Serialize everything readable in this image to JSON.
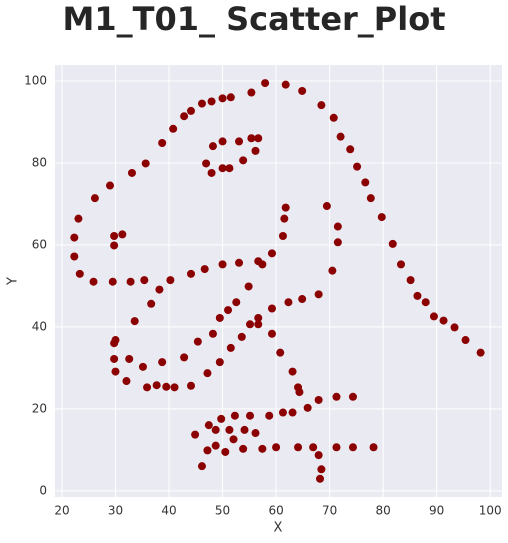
{
  "chart_data": {
    "type": "scatter",
    "title": "M1_T01_ Scatter_Plot",
    "xlabel": "X",
    "ylabel": "Y",
    "color": "#8b0000",
    "grid": true,
    "xlim": [
      18.7,
      102.2
    ],
    "ylim": [
      -1.5,
      103.9
    ],
    "xticks": [
      20,
      30,
      40,
      50,
      60,
      70,
      80,
      90,
      100
    ],
    "yticks": [
      0,
      20,
      40,
      60,
      80,
      100
    ],
    "x": [
      55.3846,
      51.5385,
      46.1538,
      42.8205,
      40.7692,
      38.7179,
      35.641,
      33.0769,
      28.9744,
      26.1538,
      23.0769,
      22.3077,
      22.3077,
      23.3333,
      25.8974,
      29.4872,
      32.8205,
      35.3846,
      40.2564,
      44.1026,
      46.6667,
      50.0,
      53.0769,
      56.6667,
      59.2308,
      61.2821,
      61.5385,
      61.7949,
      57.4359,
      54.8718,
      52.5641,
      48.2051,
      49.4872,
      51.0256,
      45.3846,
      42.8205,
      38.7179,
      35.1282,
      32.5641,
      30.0,
      33.5897,
      36.6667,
      38.2051,
      29.7436,
      29.7436,
      30.0,
      32.0513,
      35.8974,
      41.0256,
      44.1026,
      47.1795,
      49.4872,
      51.5385,
      53.5897,
      55.1282,
      56.6667,
      59.2308,
      62.3077,
      64.8718,
      67.9487,
      70.5128,
      71.5385,
      71.5385,
      69.4872,
      46.9231,
      48.2051,
      50.0,
      53.0769,
      55.3846,
      56.6667,
      56.1538,
      53.8462,
      51.2821,
      50.0,
      47.9487,
      29.7436,
      29.7436,
      31.2821,
      57.9487,
      61.7949,
      64.8718,
      68.4615,
      70.7692,
      72.0513,
      73.8462,
      75.1282,
      76.6667,
      77.6923,
      79.7436,
      81.7949,
      83.3333,
      85.1282,
      86.4103,
      87.9487,
      89.4872,
      93.3333,
      95.3846,
      98.2051,
      56.6667,
      59.2308,
      60.7692,
      63.0769,
      64.1026,
      64.359,
      74.359,
      71.2821,
      67.9487,
      65.8974,
      63.0769,
      61.2821,
      58.7179,
      55.1282,
      52.3077,
      49.7436,
      47.4359,
      44.8718,
      48.7179,
      51.2821,
      54.1026,
      56.1538,
      52.0513,
      48.7179,
      47.1795,
      46.1538,
      50.5128,
      53.8462,
      57.4359,
      60.0,
      64.1026,
      66.9231,
      71.2821,
      74.359,
      78.2051,
      67.9487,
      68.4615,
      68.2051,
      37.6923,
      39.4872,
      91.2821,
      50.0,
      47.9487,
      44.1026
    ],
    "y": [
      97.1795,
      96.0256,
      94.4872,
      91.4103,
      88.3333,
      84.8718,
      79.8718,
      77.5641,
      74.4872,
      71.4103,
      66.4103,
      61.7949,
      57.1795,
      52.9487,
      51.0256,
      51.0256,
      51.0256,
      51.4103,
      51.4103,
      52.9487,
      54.1026,
      55.2564,
      55.641,
      56.0256,
      57.9487,
      62.1795,
      66.4103,
      69.1026,
      55.2564,
      49.8718,
      46.0256,
      38.3333,
      42.1795,
      44.1026,
      36.4103,
      32.5641,
      31.4103,
      30.2564,
      32.1795,
      36.7949,
      41.4103,
      45.641,
      49.1026,
      36.0256,
      32.1795,
      29.1026,
      26.7949,
      25.2564,
      25.2564,
      25.641,
      28.718,
      31.4103,
      34.8718,
      37.5641,
      40.641,
      42.1795,
      44.4872,
      46.0256,
      46.7949,
      47.9487,
      53.7179,
      60.641,
      64.4872,
      69.4872,
      79.8718,
      84.1026,
      85.2564,
      85.2564,
      86.0256,
      86.0256,
      82.9487,
      80.641,
      78.718,
      78.718,
      77.5641,
      59.8718,
      62.1795,
      62.5641,
      99.4872,
      99.1026,
      97.5641,
      94.1026,
      91.0256,
      86.4103,
      83.3333,
      79.1026,
      75.2564,
      71.4103,
      66.7949,
      60.2564,
      55.2564,
      51.4103,
      47.5641,
      46.0256,
      42.5641,
      39.8718,
      36.7949,
      33.718,
      40.641,
      38.3333,
      33.718,
      29.1026,
      25.2564,
      24.1026,
      22.9487,
      22.9487,
      22.1795,
      20.2564,
      19.1026,
      19.1026,
      18.3333,
      18.3333,
      18.3333,
      17.5641,
      16.0256,
      13.7179,
      14.8718,
      14.8718,
      14.8718,
      14.1026,
      12.5641,
      11.0256,
      9.8718,
      6.0256,
      9.4872,
      10.2564,
      10.2564,
      10.641,
      10.641,
      10.641,
      10.641,
      10.641,
      10.641,
      8.718,
      5.2564,
      2.9487,
      25.7692,
      25.3846,
      41.5385,
      95.7692,
      95.0,
      92.6923
    ]
  }
}
